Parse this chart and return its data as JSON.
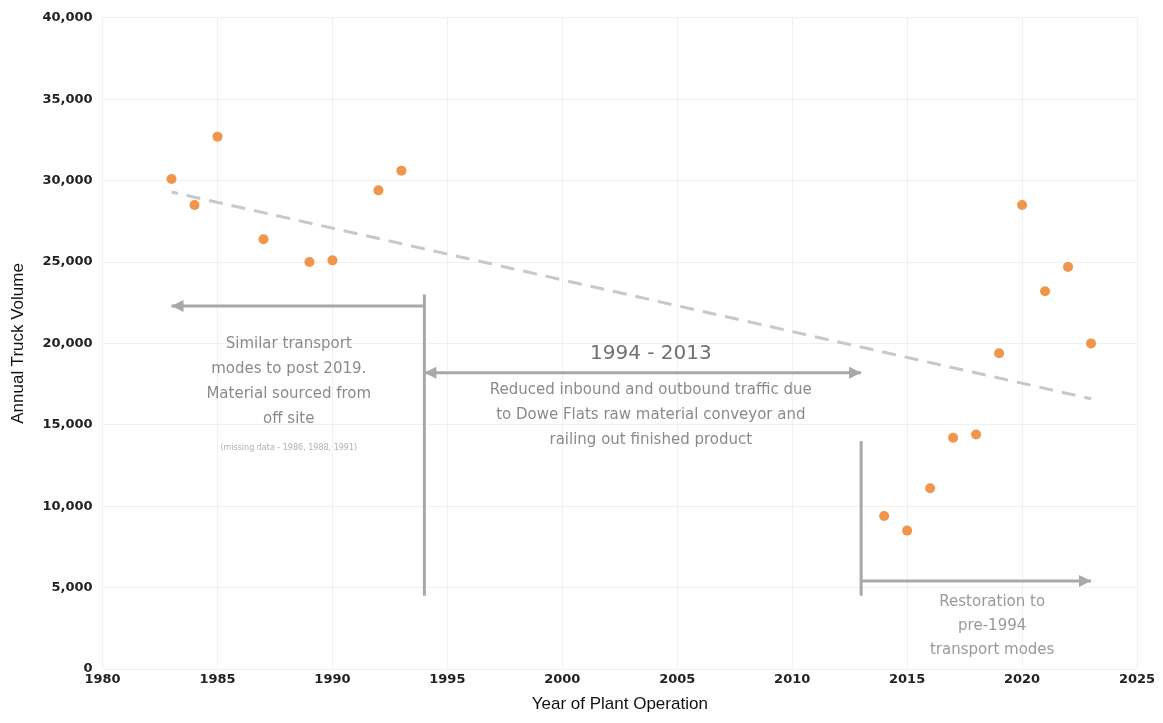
{
  "chart_data": {
    "type": "scatter",
    "xlabel": "Year of Plant Operation",
    "ylabel": "Annual Truck Volume",
    "xlim": [
      1980,
      2025
    ],
    "xticks": [
      1980,
      1985,
      1990,
      1995,
      2000,
      2005,
      2010,
      2015,
      2020,
      2025
    ],
    "ylim": [
      0,
      40000
    ],
    "yticks": [
      {
        "value": 0,
        "label": "0"
      },
      {
        "value": 5000,
        "label": "5,000"
      },
      {
        "value": 10000,
        "label": "10,000"
      },
      {
        "value": 15000,
        "label": "15,000"
      },
      {
        "value": 20000,
        "label": "20,000"
      },
      {
        "value": 25000,
        "label": "25,000"
      },
      {
        "value": 30000,
        "label": "30,000"
      },
      {
        "value": 35000,
        "label": "35,000"
      },
      {
        "value": 40000,
        "label": "40,000"
      }
    ],
    "grid": true,
    "legend": false,
    "marker": "circle",
    "series": [
      {
        "color": "#f0954a",
        "x": [
          1983,
          1984,
          1985,
          1987,
          1989,
          1990,
          1992,
          1993,
          2014,
          2015,
          2016,
          2017,
          2018,
          2019,
          2020,
          2021,
          2022,
          2023
        ],
        "values": [
          30100,
          28500,
          32700,
          26400,
          25000,
          25100,
          29400,
          30600,
          9400,
          8500,
          11100,
          14200,
          14400,
          19400,
          28500,
          23200,
          24700,
          20000
        ]
      },
      {
        "type": "line",
        "color": "#c8c8c8",
        "line_style": "dashed",
        "marker": "none",
        "x": [
          1983,
          2023
        ],
        "values": [
          29300,
          16600
        ]
      }
    ],
    "ref_lines": [
      {
        "axis": "x",
        "value": 1994,
        "color": "#a8a8a8"
      },
      {
        "axis": "x",
        "value": 2013,
        "color": "#a8a8a8"
      }
    ],
    "annotations": [
      "Similar transport modes to post 2019. Material sourced from off site",
      "(missing data - 1986, 1988, 1991)",
      "1994 - 2013",
      "Reduced inbound and outbound traffic due to Dowe Flats raw material conveyor and railing out finished product",
      "Restoration to pre-1994 transport modes"
    ]
  }
}
